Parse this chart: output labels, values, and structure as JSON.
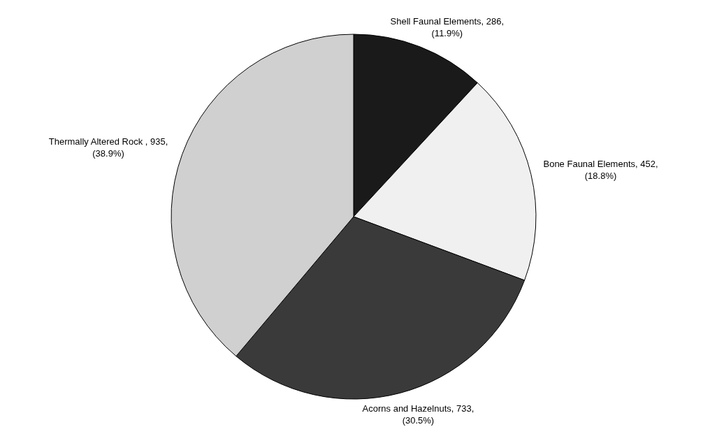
{
  "chart_data": {
    "type": "pie",
    "categories": [
      "Shell Faunal Elements",
      "Bone Faunal Elements",
      "Acorns and Hazelnuts",
      "Thermally Altered Rock "
    ],
    "values": [
      286,
      452,
      733,
      935
    ],
    "value_labels": [
      "286, (11.9%)",
      "452, (18.8%)",
      "733, (30.5%)",
      "935, (38.9%)"
    ],
    "colors": [
      "#1a1a1a",
      "#f0f0f0",
      "#3a3a3a",
      "#d0d0d0"
    ]
  }
}
